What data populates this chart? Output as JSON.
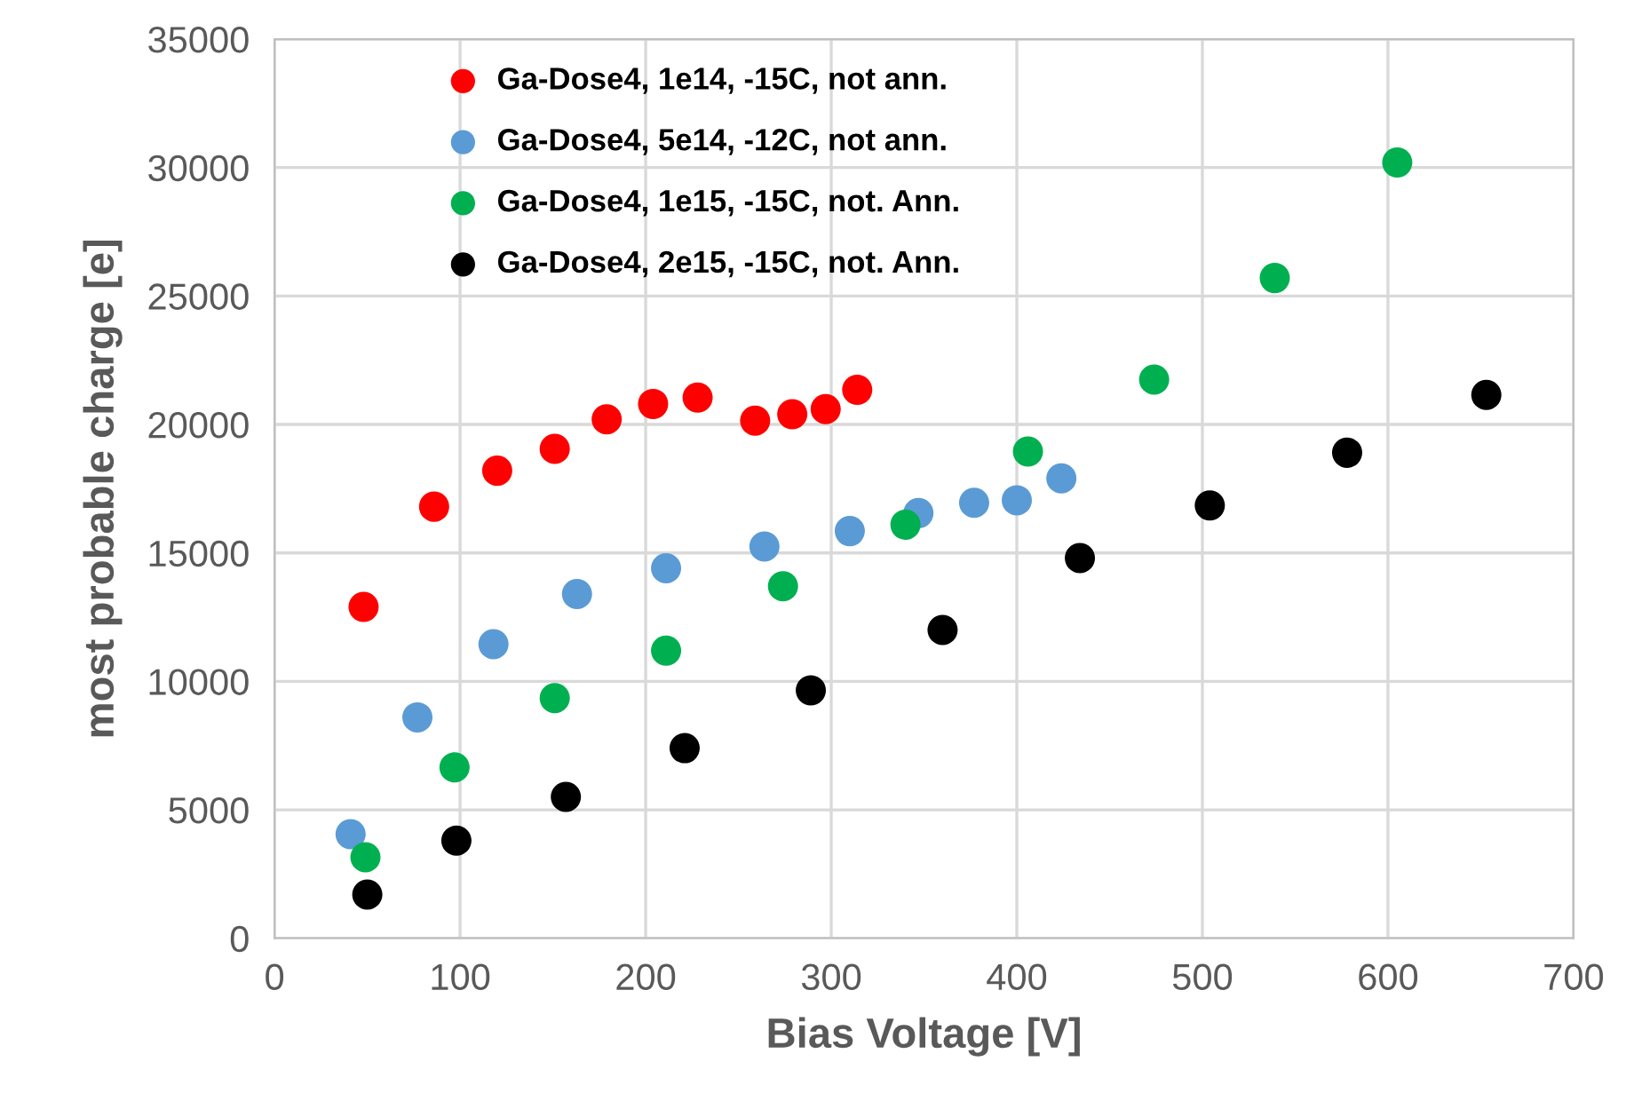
{
  "chart_data": {
    "type": "scatter",
    "xlabel": "Bias Voltage [V]",
    "ylabel": "most probable charge [e]",
    "xlim": [
      0,
      700
    ],
    "xticks": [
      0,
      100,
      200,
      300,
      400,
      500,
      600,
      700
    ],
    "ylim": [
      0,
      35000
    ],
    "yticks": [
      0,
      5000,
      10000,
      15000,
      20000,
      25000,
      30000,
      35000
    ],
    "grid": true,
    "legend": "top left",
    "marker": "circle",
    "series": [
      {
        "name": "Ga-Dose4, 1e14, -15C, not ann.",
        "color": "#ff0000",
        "x": [
          48,
          86,
          120,
          151,
          179,
          204,
          228,
          259,
          279,
          297,
          314
        ],
        "values": [
          12900,
          16800,
          18200,
          19050,
          20200,
          20800,
          21050,
          20150,
          20400,
          20600,
          21350
        ]
      },
      {
        "name": "Ga-Dose4, 5e14, -12C, not ann.",
        "color": "#5b9bd5",
        "x": [
          41,
          77,
          118,
          163,
          211,
          264,
          310,
          347,
          377,
          400,
          424
        ],
        "values": [
          4050,
          8600,
          11450,
          13400,
          14400,
          15250,
          15850,
          16550,
          16950,
          17050,
          17900
        ]
      },
      {
        "name": "Ga-Dose4, 1e15, -15C, not. Ann.",
        "color": "#00b050",
        "x": [
          49,
          97,
          151,
          211,
          274,
          340,
          406,
          474,
          539,
          605
        ],
        "values": [
          3150,
          6650,
          9350,
          11200,
          13700,
          16100,
          18950,
          21750,
          25700,
          30200
        ]
      },
      {
        "name": "Ga-Dose4, 2e15, -15C, not. Ann.",
        "color": "#000000",
        "x": [
          50,
          98,
          157,
          221,
          289,
          360,
          434,
          504,
          578,
          653
        ],
        "values": [
          1700,
          3800,
          5500,
          7400,
          9650,
          12000,
          14800,
          16850,
          18900,
          21150
        ]
      }
    ]
  }
}
